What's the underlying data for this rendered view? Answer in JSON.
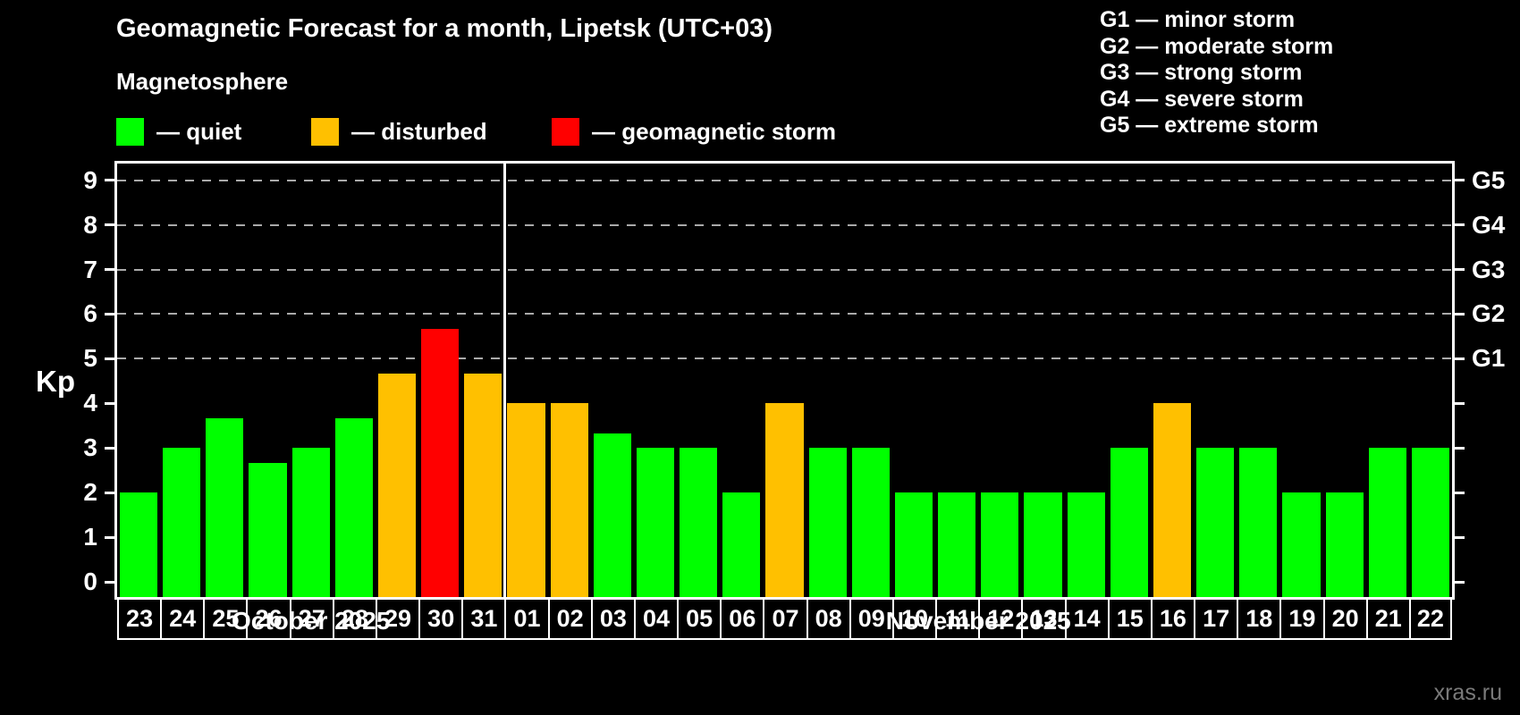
{
  "header": {
    "title": "Geomagnetic Forecast for a month, Lipetsk (UTC+03)",
    "subtitle": "Magnetosphere"
  },
  "legend": {
    "items": [
      {
        "name": "quiet",
        "label": "— quiet",
        "color": "#00ff00",
        "x": 130
      },
      {
        "name": "disturbed",
        "label": "— disturbed",
        "color": "#ffc000",
        "x": 348
      },
      {
        "name": "geomagnetic-storm",
        "label": "— geomagnetic storm",
        "color": "#ff0000",
        "x": 617
      }
    ]
  },
  "storm_legend": {
    "items": [
      "G1 — minor storm",
      "G2 — moderate storm",
      "G3 — strong storm",
      "G4 — severe storm",
      "G5 — extreme storm"
    ]
  },
  "watermark": "xras.ru",
  "colors": {
    "quiet": "#00ff00",
    "disturbed": "#ffc000",
    "storm": "#ff0000",
    "axis": "#ffffff",
    "grid": "#aaaaaa",
    "background": "#000000"
  },
  "chart_data": {
    "type": "bar",
    "title": "Geomagnetic Forecast for a month, Lipetsk (UTC+03)",
    "ylabel": "Kp",
    "ylim": [
      0,
      9
    ],
    "yticks": [
      0,
      1,
      2,
      3,
      4,
      5,
      6,
      7,
      8,
      9
    ],
    "gridlines_at": [
      5,
      6,
      7,
      8,
      9
    ],
    "grid": "dashed horizontal at G-storm levels only",
    "legend_position": "top-left and top-right",
    "right_axis_labels": [
      {
        "label": "G1",
        "kp": 5
      },
      {
        "label": "G2",
        "kp": 6
      },
      {
        "label": "G3",
        "kp": 7
      },
      {
        "label": "G4",
        "kp": 8
      },
      {
        "label": "G5",
        "kp": 9
      }
    ],
    "bars": [
      {
        "day": "23",
        "kp": 2,
        "status": "quiet"
      },
      {
        "day": "24",
        "kp": 3,
        "status": "quiet"
      },
      {
        "day": "25",
        "kp": 3.67,
        "status": "quiet"
      },
      {
        "day": "26",
        "kp": 2.67,
        "status": "quiet"
      },
      {
        "day": "27",
        "kp": 3,
        "status": "quiet"
      },
      {
        "day": "28",
        "kp": 3.67,
        "status": "quiet"
      },
      {
        "day": "29",
        "kp": 4.67,
        "status": "disturbed"
      },
      {
        "day": "30",
        "kp": 5.67,
        "status": "storm"
      },
      {
        "day": "31",
        "kp": 4.67,
        "status": "disturbed"
      },
      {
        "day": "01",
        "kp": 4,
        "status": "disturbed"
      },
      {
        "day": "02",
        "kp": 4,
        "status": "disturbed"
      },
      {
        "day": "03",
        "kp": 3.33,
        "status": "quiet"
      },
      {
        "day": "04",
        "kp": 3,
        "status": "quiet"
      },
      {
        "day": "05",
        "kp": 3,
        "status": "quiet"
      },
      {
        "day": "06",
        "kp": 2,
        "status": "quiet"
      },
      {
        "day": "07",
        "kp": 4,
        "status": "disturbed"
      },
      {
        "day": "08",
        "kp": 3,
        "status": "quiet"
      },
      {
        "day": "09",
        "kp": 3,
        "status": "quiet"
      },
      {
        "day": "10",
        "kp": 2,
        "status": "quiet"
      },
      {
        "day": "11",
        "kp": 2,
        "status": "quiet"
      },
      {
        "day": "12",
        "kp": 2,
        "status": "quiet"
      },
      {
        "day": "13",
        "kp": 2,
        "status": "quiet"
      },
      {
        "day": "14",
        "kp": 2,
        "status": "quiet"
      },
      {
        "day": "15",
        "kp": 3,
        "status": "quiet"
      },
      {
        "day": "16",
        "kp": 4,
        "status": "disturbed"
      },
      {
        "day": "17",
        "kp": 3,
        "status": "quiet"
      },
      {
        "day": "18",
        "kp": 3,
        "status": "quiet"
      },
      {
        "day": "19",
        "kp": 2,
        "status": "quiet"
      },
      {
        "day": "20",
        "kp": 2,
        "status": "quiet"
      },
      {
        "day": "21",
        "kp": 3,
        "status": "quiet"
      },
      {
        "day": "22",
        "kp": 3,
        "status": "quiet"
      }
    ],
    "months": [
      {
        "label": "October 2025",
        "from": 0,
        "to": 8
      },
      {
        "label": "November 2025",
        "from": 9,
        "to": 30
      }
    ],
    "separator_before_index": 9
  }
}
